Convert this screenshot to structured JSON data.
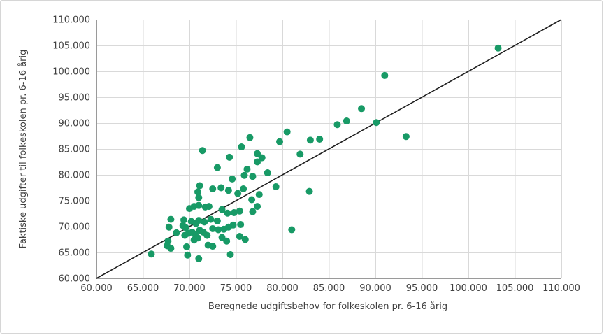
{
  "chart_data": {
    "type": "scatter",
    "title": "",
    "xlabel": "Beregnede udgiftsbehov for folkeskolen pr. 6-16 årig",
    "ylabel": "Faktiske udgifter til folkeskolen pr. 6-16 årig",
    "xlim": [
      60000,
      110000
    ],
    "ylim": [
      60000,
      110000
    ],
    "tick_step": 5000,
    "tick_format": "danish-thousands-dot",
    "grid": "on",
    "legend": "none",
    "point_color": "#189a66",
    "reference_line_color": "#1f1f1f",
    "grid_color": "#d9d9d9",
    "axis_line_color": "#9a9a9a",
    "axis_text_color": "#404040",
    "reference_line": {
      "from": [
        60000,
        60000
      ],
      "to": [
        110000,
        110000
      ]
    },
    "points": [
      [
        65900,
        64700
      ],
      [
        67700,
        67200
      ],
      [
        67600,
        66300
      ],
      [
        68000,
        65800
      ],
      [
        67800,
        69900
      ],
      [
        68000,
        71400
      ],
      [
        68600,
        68800
      ],
      [
        69400,
        71300
      ],
      [
        69300,
        70200
      ],
      [
        69600,
        69800
      ],
      [
        69500,
        68300
      ],
      [
        69900,
        68700
      ],
      [
        70300,
        68900
      ],
      [
        70600,
        68500
      ],
      [
        70900,
        67800
      ],
      [
        70500,
        67400
      ],
      [
        69700,
        66100
      ],
      [
        69800,
        64500
      ],
      [
        71000,
        63800
      ],
      [
        74400,
        64600
      ],
      [
        72000,
        66400
      ],
      [
        72500,
        66200
      ],
      [
        71900,
        68300
      ],
      [
        71100,
        69300
      ],
      [
        71500,
        68900
      ],
      [
        72500,
        69600
      ],
      [
        73100,
        69400
      ],
      [
        73700,
        69500
      ],
      [
        73500,
        67900
      ],
      [
        74000,
        67200
      ],
      [
        75400,
        68100
      ],
      [
        76000,
        67500
      ],
      [
        74200,
        69900
      ],
      [
        74700,
        70300
      ],
      [
        75500,
        70400
      ],
      [
        70200,
        71000
      ],
      [
        70700,
        70600
      ],
      [
        71000,
        71200
      ],
      [
        71600,
        70900
      ],
      [
        72300,
        71400
      ],
      [
        73000,
        71100
      ],
      [
        70000,
        73500
      ],
      [
        70500,
        73900
      ],
      [
        71000,
        74100
      ],
      [
        71700,
        73800
      ],
      [
        72100,
        73900
      ],
      [
        73500,
        73300
      ],
      [
        74100,
        72600
      ],
      [
        74800,
        72700
      ],
      [
        75400,
        73000
      ],
      [
        76800,
        72900
      ],
      [
        77300,
        73900
      ],
      [
        70900,
        76700
      ],
      [
        71000,
        75600
      ],
      [
        71100,
        77900
      ],
      [
        72500,
        77300
      ],
      [
        73400,
        77500
      ],
      [
        74200,
        77000
      ],
      [
        75800,
        77300
      ],
      [
        75200,
        76400
      ],
      [
        77500,
        76200
      ],
      [
        76700,
        75200
      ],
      [
        74600,
        79200
      ],
      [
        75900,
        79900
      ],
      [
        76200,
        81100
      ],
      [
        76800,
        79700
      ],
      [
        78400,
        80400
      ],
      [
        79300,
        77700
      ],
      [
        73000,
        81400
      ],
      [
        71400,
        84700
      ],
      [
        74300,
        83400
      ],
      [
        75600,
        85400
      ],
      [
        76500,
        87200
      ],
      [
        77300,
        84100
      ],
      [
        77800,
        83300
      ],
      [
        77300,
        82500
      ],
      [
        79700,
        86400
      ],
      [
        80500,
        88300
      ],
      [
        81900,
        84000
      ],
      [
        83000,
        86700
      ],
      [
        84000,
        86900
      ],
      [
        82900,
        76800
      ],
      [
        81000,
        69400
      ],
      [
        85900,
        89700
      ],
      [
        86900,
        90400
      ],
      [
        88500,
        92800
      ],
      [
        90100,
        90100
      ],
      [
        91000,
        99200
      ],
      [
        93300,
        87400
      ],
      [
        103200,
        104500
      ]
    ]
  }
}
